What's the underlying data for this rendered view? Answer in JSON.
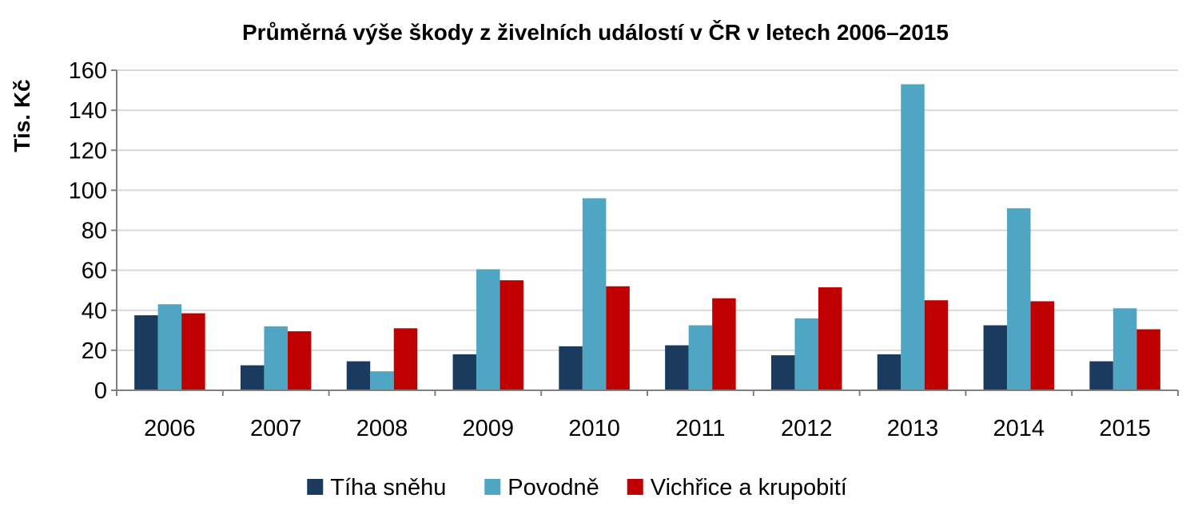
{
  "chart_data": {
    "type": "bar",
    "title": "Průměrná výše škody z živelních událostí v ČR v letech 2006–2015",
    "xlabel": "",
    "ylabel": "Tis. Kč",
    "ylim": [
      0,
      160
    ],
    "yticks": [
      0,
      20,
      40,
      60,
      80,
      100,
      120,
      140,
      160
    ],
    "grid": true,
    "legend_position": "bottom",
    "categories": [
      "2006",
      "2007",
      "2008",
      "2009",
      "2010",
      "2011",
      "2012",
      "2013",
      "2014",
      "2015"
    ],
    "series": [
      {
        "name": "Tíha sněhu",
        "color": "#1a3a5e",
        "values": [
          37.5,
          12.5,
          14.5,
          18,
          22,
          22.5,
          17.5,
          18,
          32.5,
          14.5
        ]
      },
      {
        "name": "Povodně",
        "color": "#4fa6c3",
        "values": [
          43,
          32,
          9.5,
          60.5,
          96,
          32.5,
          36,
          153,
          91,
          41
        ]
      },
      {
        "name": "Vichřice a krupobití",
        "color": "#c00000",
        "values": [
          38.5,
          29.5,
          31,
          55,
          52,
          46,
          51.5,
          45,
          44.5,
          30.5
        ]
      }
    ]
  }
}
